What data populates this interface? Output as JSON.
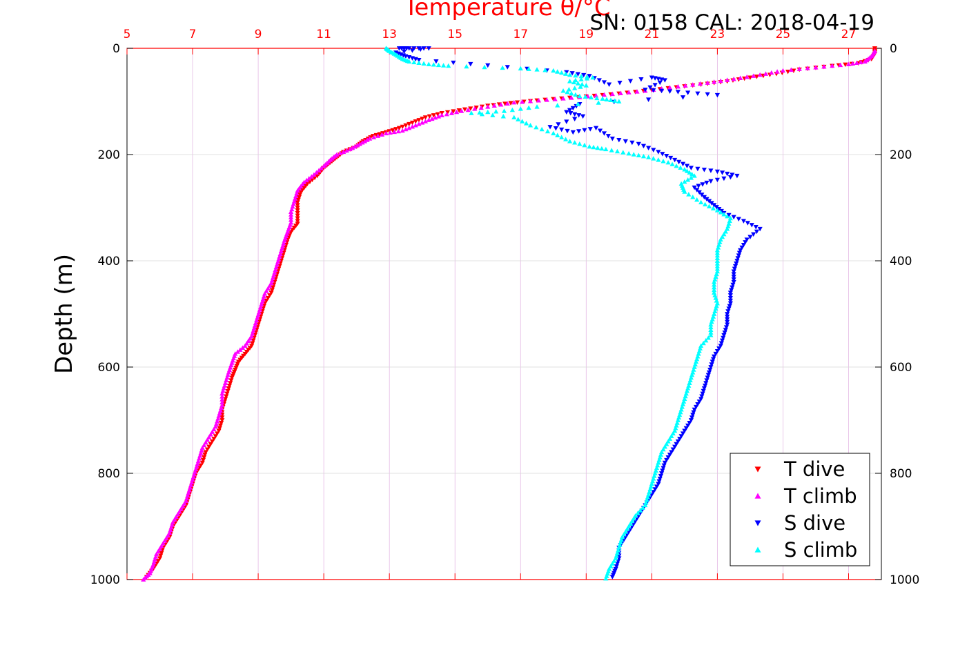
{
  "chart_data": {
    "type": "scatter",
    "title": "SN: 0158  CAL: 2018-04-19",
    "x_axis_top": {
      "label": "Temperature θ/°C",
      "range": [
        5,
        28
      ],
      "ticks": [
        5,
        7,
        9,
        11,
        13,
        15,
        17,
        19,
        21,
        23,
        25,
        27
      ],
      "color": "#ff0000"
    },
    "y_axis": {
      "label": "Depth (m)",
      "range": [
        0,
        1000
      ],
      "inverted": true,
      "ticks": [
        0,
        200,
        400,
        600,
        800,
        1000
      ]
    },
    "y_axis_right_ticks": [
      0,
      200,
      400,
      600,
      800,
      1000
    ],
    "grid": true,
    "legend_position": "bottom-right",
    "series": [
      {
        "name": "T dive",
        "marker": "triangle-down",
        "color": "#ff0000",
        "points": [
          [
            27.8,
            0
          ],
          [
            27.8,
            10
          ],
          [
            27.7,
            20
          ],
          [
            27.3,
            28
          ],
          [
            26.5,
            33
          ],
          [
            25.5,
            40
          ],
          [
            24.8,
            48
          ],
          [
            24.0,
            55
          ],
          [
            23.3,
            62
          ],
          [
            22.5,
            68
          ],
          [
            21.5,
            75
          ],
          [
            20.5,
            82
          ],
          [
            19.5,
            88
          ],
          [
            18.5,
            93
          ],
          [
            17.5,
            98
          ],
          [
            16.7,
            103
          ],
          [
            16.0,
            108
          ],
          [
            15.3,
            115
          ],
          [
            14.6,
            122
          ],
          [
            14.1,
            130
          ],
          [
            13.7,
            140
          ],
          [
            13.3,
            150
          ],
          [
            12.9,
            158
          ],
          [
            12.5,
            165
          ],
          [
            12.2,
            175
          ],
          [
            12.0,
            185
          ],
          [
            11.6,
            195
          ],
          [
            11.4,
            205
          ],
          [
            11.2,
            215
          ],
          [
            11.0,
            225
          ],
          [
            10.8,
            240
          ],
          [
            10.5,
            255
          ],
          [
            10.3,
            270
          ],
          [
            10.2,
            290
          ],
          [
            10.2,
            310
          ],
          [
            10.2,
            330
          ],
          [
            10.0,
            345
          ],
          [
            9.9,
            360
          ],
          [
            9.8,
            380
          ],
          [
            9.7,
            400
          ],
          [
            9.6,
            420
          ],
          [
            9.5,
            440
          ],
          [
            9.4,
            460
          ],
          [
            9.2,
            480
          ],
          [
            9.1,
            500
          ],
          [
            9.0,
            520
          ],
          [
            8.9,
            540
          ],
          [
            8.8,
            560
          ],
          [
            8.6,
            575
          ],
          [
            8.4,
            590
          ],
          [
            8.3,
            605
          ],
          [
            8.2,
            620
          ],
          [
            8.1,
            640
          ],
          [
            8.0,
            660
          ],
          [
            7.9,
            680
          ],
          [
            7.9,
            700
          ],
          [
            7.8,
            720
          ],
          [
            7.6,
            740
          ],
          [
            7.4,
            760
          ],
          [
            7.3,
            780
          ],
          [
            7.1,
            800
          ],
          [
            7.0,
            820
          ],
          [
            6.9,
            840
          ],
          [
            6.8,
            860
          ],
          [
            6.6,
            880
          ],
          [
            6.4,
            900
          ],
          [
            6.3,
            920
          ],
          [
            6.1,
            940
          ],
          [
            6.0,
            960
          ],
          [
            5.8,
            980
          ],
          [
            5.6,
            995
          ]
        ]
      },
      {
        "name": "T climb",
        "marker": "triangle-up",
        "color": "#ff00ff",
        "points": [
          [
            27.8,
            5
          ],
          [
            27.7,
            15
          ],
          [
            27.5,
            25
          ],
          [
            27.0,
            30
          ],
          [
            26.0,
            36
          ],
          [
            25.0,
            42
          ],
          [
            24.3,
            50
          ],
          [
            23.5,
            58
          ],
          [
            22.7,
            65
          ],
          [
            21.8,
            72
          ],
          [
            20.8,
            80
          ],
          [
            19.8,
            86
          ],
          [
            18.8,
            92
          ],
          [
            17.8,
            97
          ],
          [
            16.8,
            102
          ],
          [
            16.0,
            110
          ],
          [
            15.2,
            118
          ],
          [
            14.6,
            126
          ],
          [
            14.2,
            135
          ],
          [
            13.8,
            145
          ],
          [
            13.4,
            155
          ],
          [
            12.9,
            160
          ],
          [
            12.4,
            170
          ],
          [
            12.1,
            180
          ],
          [
            11.8,
            190
          ],
          [
            11.4,
            200
          ],
          [
            11.2,
            210
          ],
          [
            11.0,
            222
          ],
          [
            10.7,
            238
          ],
          [
            10.4,
            252
          ],
          [
            10.2,
            268
          ],
          [
            10.1,
            288
          ],
          [
            10.0,
            308
          ],
          [
            10.0,
            328
          ],
          [
            9.9,
            345
          ],
          [
            9.8,
            362
          ],
          [
            9.7,
            382
          ],
          [
            9.6,
            402
          ],
          [
            9.5,
            422
          ],
          [
            9.4,
            442
          ],
          [
            9.2,
            462
          ],
          [
            9.1,
            482
          ],
          [
            9.0,
            502
          ],
          [
            8.9,
            522
          ],
          [
            8.8,
            542
          ],
          [
            8.6,
            560
          ],
          [
            8.3,
            575
          ],
          [
            8.2,
            592
          ],
          [
            8.1,
            610
          ],
          [
            8.0,
            630
          ],
          [
            7.9,
            650
          ],
          [
            7.9,
            672
          ],
          [
            7.8,
            692
          ],
          [
            7.7,
            712
          ],
          [
            7.5,
            732
          ],
          [
            7.3,
            752
          ],
          [
            7.2,
            772
          ],
          [
            7.1,
            792
          ],
          [
            7.0,
            812
          ],
          [
            6.9,
            832
          ],
          [
            6.8,
            852
          ],
          [
            6.6,
            872
          ],
          [
            6.4,
            892
          ],
          [
            6.3,
            912
          ],
          [
            6.1,
            932
          ],
          [
            5.9,
            952
          ],
          [
            5.8,
            972
          ],
          [
            5.7,
            988
          ],
          [
            5.5,
            1000
          ]
        ]
      },
      {
        "name": "S dive",
        "marker": "triangle-down",
        "color": "#0000ff",
        "points": [
          [
            13.3,
            0
          ],
          [
            13.6,
            0
          ],
          [
            14.2,
            0
          ],
          [
            13.2,
            8
          ],
          [
            13.5,
            15
          ],
          [
            13.9,
            22
          ],
          [
            16.0,
            32
          ],
          [
            18.4,
            45
          ],
          [
            19.1,
            52
          ],
          [
            19.7,
            68
          ],
          [
            21.0,
            55
          ],
          [
            21.4,
            60
          ],
          [
            20.8,
            78
          ],
          [
            21.8,
            82
          ],
          [
            23.0,
            88
          ],
          [
            18.8,
            105
          ],
          [
            18.4,
            120
          ],
          [
            18.9,
            128
          ],
          [
            17.9,
            148
          ],
          [
            18.6,
            158
          ],
          [
            19.3,
            150
          ],
          [
            19.8,
            170
          ],
          [
            20.6,
            180
          ],
          [
            21.2,
            195
          ],
          [
            21.7,
            210
          ],
          [
            22.2,
            225
          ],
          [
            23.0,
            232
          ],
          [
            23.6,
            240
          ],
          [
            22.8,
            250
          ],
          [
            22.3,
            262
          ],
          [
            22.6,
            280
          ],
          [
            22.9,
            295
          ],
          [
            23.2,
            310
          ],
          [
            23.8,
            325
          ],
          [
            24.3,
            340
          ],
          [
            23.9,
            360
          ],
          [
            23.7,
            380
          ],
          [
            23.6,
            400
          ],
          [
            23.5,
            420
          ],
          [
            23.5,
            440
          ],
          [
            23.4,
            460
          ],
          [
            23.4,
            480
          ],
          [
            23.3,
            500
          ],
          [
            23.3,
            520
          ],
          [
            23.2,
            540
          ],
          [
            23.1,
            560
          ],
          [
            22.9,
            580
          ],
          [
            22.8,
            600
          ],
          [
            22.7,
            620
          ],
          [
            22.6,
            640
          ],
          [
            22.5,
            660
          ],
          [
            22.3,
            680
          ],
          [
            22.2,
            700
          ],
          [
            22.0,
            720
          ],
          [
            21.8,
            740
          ],
          [
            21.6,
            760
          ],
          [
            21.4,
            780
          ],
          [
            21.3,
            800
          ],
          [
            21.2,
            820
          ],
          [
            21.0,
            840
          ],
          [
            20.8,
            860
          ],
          [
            20.6,
            880
          ],
          [
            20.4,
            900
          ],
          [
            20.2,
            920
          ],
          [
            20.0,
            940
          ],
          [
            20.0,
            960
          ],
          [
            19.9,
            980
          ],
          [
            19.8,
            995
          ]
        ]
      },
      {
        "name": "S climb",
        "marker": "triangle-up",
        "color": "#00ffff",
        "points": [
          [
            12.9,
            0
          ],
          [
            13.0,
            5
          ],
          [
            13.2,
            12
          ],
          [
            13.4,
            20
          ],
          [
            13.6,
            25
          ],
          [
            14.2,
            30
          ],
          [
            14.8,
            33
          ],
          [
            17.0,
            38
          ],
          [
            18.0,
            42
          ],
          [
            18.5,
            50
          ],
          [
            19.2,
            55
          ],
          [
            18.5,
            62
          ],
          [
            19.0,
            70
          ],
          [
            18.3,
            80
          ],
          [
            18.8,
            90
          ],
          [
            19.5,
            95
          ],
          [
            20.0,
            100
          ],
          [
            17.5,
            110
          ],
          [
            16.5,
            118
          ],
          [
            15.5,
            122
          ],
          [
            16.8,
            130
          ],
          [
            17.3,
            145
          ],
          [
            18.0,
            160
          ],
          [
            18.5,
            175
          ],
          [
            19.1,
            185
          ],
          [
            19.6,
            190
          ],
          [
            20.3,
            198
          ],
          [
            20.9,
            205
          ],
          [
            21.5,
            215
          ],
          [
            22.0,
            228
          ],
          [
            22.3,
            240
          ],
          [
            21.9,
            255
          ],
          [
            22.0,
            270
          ],
          [
            22.5,
            290
          ],
          [
            23.0,
            305
          ],
          [
            23.4,
            320
          ],
          [
            23.3,
            340
          ],
          [
            23.1,
            360
          ],
          [
            23.0,
            380
          ],
          [
            23.0,
            400
          ],
          [
            23.0,
            420
          ],
          [
            22.9,
            440
          ],
          [
            22.9,
            460
          ],
          [
            23.0,
            480
          ],
          [
            22.9,
            500
          ],
          [
            22.8,
            520
          ],
          [
            22.8,
            540
          ],
          [
            22.5,
            560
          ],
          [
            22.4,
            580
          ],
          [
            22.3,
            600
          ],
          [
            22.2,
            620
          ],
          [
            22.1,
            640
          ],
          [
            22.0,
            660
          ],
          [
            21.9,
            680
          ],
          [
            21.8,
            700
          ],
          [
            21.7,
            720
          ],
          [
            21.5,
            740
          ],
          [
            21.3,
            760
          ],
          [
            21.2,
            780
          ],
          [
            21.1,
            800
          ],
          [
            21.0,
            820
          ],
          [
            20.9,
            840
          ],
          [
            20.8,
            860
          ],
          [
            20.5,
            880
          ],
          [
            20.3,
            900
          ],
          [
            20.1,
            920
          ],
          [
            20.0,
            940
          ],
          [
            19.9,
            960
          ],
          [
            19.7,
            980
          ],
          [
            19.6,
            998
          ]
        ]
      }
    ]
  }
}
